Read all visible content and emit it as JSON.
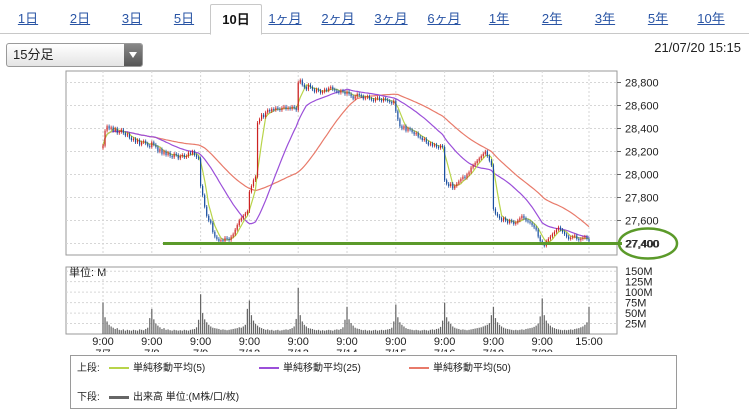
{
  "tabs": [
    {
      "label": "1日",
      "active": false
    },
    {
      "label": "2日",
      "active": false
    },
    {
      "label": "3日",
      "active": false
    },
    {
      "label": "5日",
      "active": false
    },
    {
      "label": "10日",
      "active": true
    },
    {
      "label": "1ヶ月",
      "active": false
    },
    {
      "label": "2ヶ月",
      "active": false
    },
    {
      "label": "3ヶ月",
      "active": false
    },
    {
      "label": "6ヶ月",
      "active": false
    },
    {
      "label": "1年",
      "active": false
    },
    {
      "label": "2年",
      "active": false
    },
    {
      "label": "3年",
      "active": false
    },
    {
      "label": "5年",
      "active": false
    },
    {
      "label": "10年",
      "active": false
    }
  ],
  "interval_select": {
    "value": "15分足"
  },
  "datetime": "21/07/20 15:15",
  "colors": {
    "up_candle": "#cc2222",
    "down_candle": "#1a4fa0",
    "ma5": "#b8d44a",
    "ma25": "#9b4fd9",
    "ma50": "#e87a6a",
    "volume": "#666666",
    "highlight_line": "#5b9a2a"
  },
  "chart_data": [
    {
      "type": "candlestick",
      "title": "",
      "yticks": [
        "28,800",
        "28,600",
        "28,400",
        "28,200",
        "28,000",
        "27,800",
        "27,600",
        "27,400"
      ],
      "ylim": [
        27300,
        28900
      ],
      "xticks": [
        {
          "time": "9:00",
          "date": "7/7"
        },
        {
          "time": "9:00",
          "date": "7/8"
        },
        {
          "time": "9:00",
          "date": "7/9"
        },
        {
          "time": "9:00",
          "date": "7/12"
        },
        {
          "time": "9:00",
          "date": "7/13"
        },
        {
          "time": "9:00",
          "date": "7/14"
        },
        {
          "time": "9:00",
          "date": "7/15"
        },
        {
          "time": "9:00",
          "date": "7/16"
        },
        {
          "time": "9:00",
          "date": "7/19"
        },
        {
          "time": "9:00",
          "date": "7/20"
        },
        {
          "time": "15:00",
          "date": ""
        }
      ],
      "sessions": [
        {
          "date": "7/7",
          "closes": [
            28250,
            28380,
            28420,
            28400,
            28410,
            28380,
            28400,
            28360,
            28370,
            28390,
            28360,
            28340,
            28350,
            28320,
            28300,
            28310,
            28280,
            28300,
            28260,
            28280,
            28290,
            28270,
            28250,
            28240
          ]
        },
        {
          "date": "7/8",
          "closes": [
            28280,
            28260,
            28240,
            28200,
            28220,
            28180,
            28200,
            28170,
            28190,
            28160,
            28150,
            28180,
            28170,
            28140,
            28160,
            28170,
            28150,
            28160,
            28190,
            28180,
            28200,
            28170,
            28150,
            28140
          ]
        },
        {
          "date": "7/9",
          "closes": [
            27900,
            27820,
            27720,
            27640,
            27600,
            27580,
            27500,
            27460,
            27440,
            27420,
            27430,
            27420,
            27450,
            27440,
            27430,
            27460,
            27480,
            27520,
            27560,
            27600,
            27620,
            27640,
            27660,
            27680
          ]
        },
        {
          "date": "7/12",
          "closes": [
            27850,
            27900,
            27950,
            27980,
            28450,
            28480,
            28520,
            28500,
            28540,
            28560,
            28550,
            28570,
            28560,
            28580,
            28570,
            28560,
            28580,
            28590,
            28570,
            28580,
            28570,
            28590,
            28580,
            28560
          ]
        },
        {
          "date": "7/13",
          "closes": [
            28800,
            28820,
            28780,
            28760,
            28740,
            28780,
            28760,
            28740,
            28720,
            28740,
            28730,
            28710,
            28720,
            28740,
            28730,
            28750,
            28760,
            28740,
            28730,
            28720,
            28710,
            28730,
            28720,
            28700
          ]
        },
        {
          "date": "7/14",
          "closes": [
            28720,
            28700,
            28680,
            28660,
            28680,
            28700,
            28690,
            28680,
            28660,
            28670,
            28680,
            28660,
            28650,
            28640,
            28660,
            28670,
            28650,
            28640,
            28660,
            28650,
            28640,
            28630,
            28620,
            28640
          ]
        },
        {
          "date": "7/15",
          "closes": [
            28550,
            28480,
            28420,
            28400,
            28420,
            28380,
            28400,
            28390,
            28370,
            28350,
            28360,
            28330,
            28320,
            28300,
            28310,
            28280,
            28260,
            28270,
            28250,
            28260,
            28240,
            28230,
            28250,
            28240
          ]
        },
        {
          "date": "7/16",
          "closes": [
            27950,
            27920,
            27900,
            27920,
            27880,
            27900,
            27920,
            27940,
            27960,
            27980,
            27970,
            28000,
            28020,
            28060,
            28080,
            28100,
            28120,
            28140,
            28160,
            28180,
            28200,
            28160,
            28120,
            28080
          ]
        },
        {
          "date": "7/19",
          "closes": [
            27700,
            27660,
            27640,
            27620,
            27600,
            27620,
            27600,
            27580,
            27600,
            27590,
            27570,
            27580,
            27600,
            27620,
            27640,
            27620,
            27600,
            27590,
            27580,
            27560,
            27540,
            27520,
            27460,
            27420
          ]
        },
        {
          "date": "7/20",
          "closes": [
            27400,
            27380,
            27420,
            27440,
            27460,
            27480,
            27500,
            27520,
            27540,
            27520,
            27500,
            27480,
            27460,
            27440,
            27450,
            27460,
            27470,
            27440,
            27430,
            27440,
            27450,
            27460,
            27440,
            27420
          ]
        }
      ],
      "highlight_level": 27400,
      "highlight_label": "27,400"
    },
    {
      "type": "bar",
      "title": "",
      "unit_label": "単位: M",
      "yticks": [
        "150M",
        "125M",
        "100M",
        "75M",
        "50M",
        "25M"
      ],
      "ylim": [
        0,
        160
      ],
      "session_volumes": [
        [
          75,
          40,
          30,
          22,
          18,
          15,
          12,
          14,
          10,
          9,
          11,
          8,
          10,
          9,
          8,
          10,
          9,
          8,
          11,
          10,
          9,
          12,
          15,
          38
        ],
        [
          60,
          35,
          25,
          20,
          16,
          12,
          14,
          10,
          11,
          9,
          8,
          10,
          9,
          8,
          9,
          8,
          10,
          9,
          8,
          10,
          11,
          12,
          16,
          34
        ],
        [
          95,
          50,
          35,
          28,
          22,
          18,
          15,
          14,
          13,
          12,
          10,
          11,
          10,
          9,
          10,
          11,
          12,
          13,
          14,
          16,
          15,
          18,
          22,
          60
        ],
        [
          80,
          45,
          32,
          24,
          20,
          16,
          14,
          12,
          10,
          11,
          9,
          10,
          8,
          9,
          10,
          8,
          9,
          10,
          11,
          10,
          12,
          14,
          18,
          36
        ],
        [
          110,
          45,
          30,
          22,
          18,
          14,
          13,
          12,
          10,
          9,
          10,
          8,
          9,
          8,
          9,
          10,
          9,
          8,
          10,
          11,
          10,
          12,
          16,
          34
        ],
        [
          65,
          35,
          26,
          20,
          15,
          13,
          12,
          10,
          9,
          10,
          8,
          9,
          8,
          9,
          10,
          8,
          9,
          10,
          9,
          10,
          11,
          12,
          15,
          30
        ],
        [
          70,
          40,
          28,
          22,
          18,
          14,
          12,
          11,
          10,
          9,
          10,
          9,
          8,
          9,
          10,
          9,
          8,
          10,
          11,
          10,
          12,
          13,
          17,
          32
        ],
        [
          75,
          40,
          30,
          24,
          18,
          15,
          13,
          12,
          10,
          11,
          10,
          9,
          10,
          11,
          12,
          13,
          14,
          15,
          16,
          18,
          20,
          22,
          26,
          45
        ],
        [
          65,
          38,
          28,
          22,
          18,
          15,
          13,
          12,
          11,
          10,
          9,
          10,
          9,
          10,
          11,
          10,
          12,
          13,
          14,
          15,
          17,
          20,
          25,
          42
        ],
        [
          85,
          45,
          32,
          25,
          20,
          16,
          14,
          12,
          11,
          10,
          9,
          10,
          9,
          10,
          11,
          10,
          12,
          13,
          14,
          16,
          18,
          22,
          28,
          65
        ]
      ]
    }
  ],
  "legend": {
    "top_label": "上段:",
    "bottom_label": "下段:",
    "ma5_label": "単純移動平均(5)",
    "ma25_label": "単純移動平均(25)",
    "ma50_label": "単純移動平均(50)",
    "volume_label": "出来高 単位:(M株/口/枚)"
  }
}
